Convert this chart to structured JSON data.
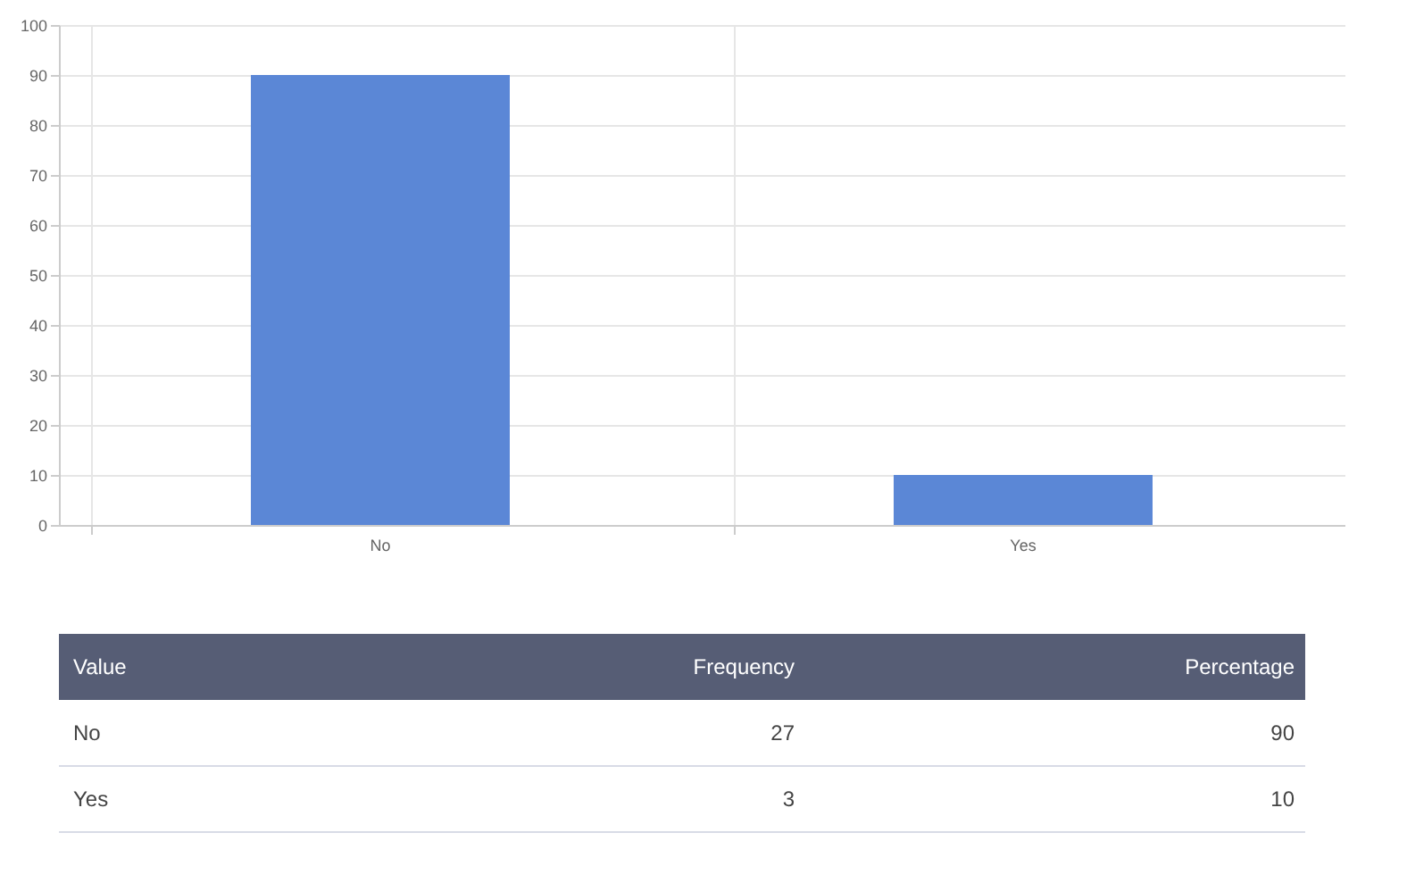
{
  "chart_data": {
    "type": "bar",
    "categories": [
      "No",
      "Yes"
    ],
    "values": [
      90,
      10
    ],
    "color": "#5b87d6",
    "ylim": [
      0,
      100
    ],
    "yticks": [
      0,
      10,
      20,
      30,
      40,
      50,
      60,
      70,
      80,
      90,
      100
    ],
    "grid": true,
    "annotations": [
      "Value",
      "Frequency",
      "Percentage",
      "27",
      "90",
      "3",
      "10"
    ]
  }
}
